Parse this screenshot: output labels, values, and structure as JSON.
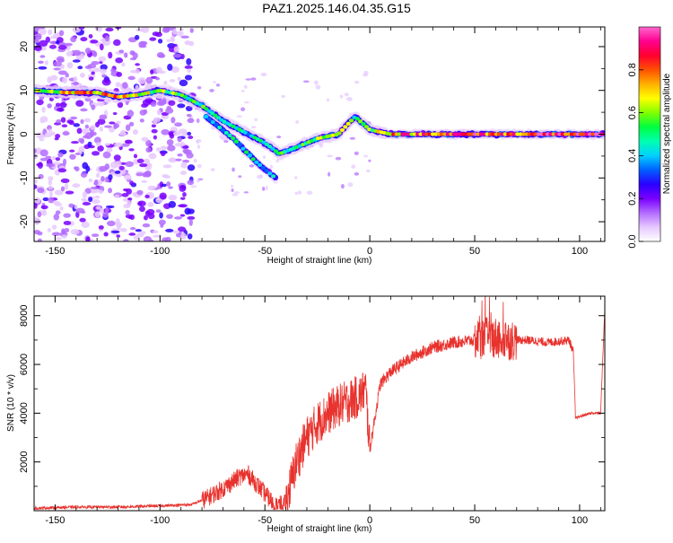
{
  "title": "PAZ1.2025.146.04.35.G15",
  "chart_data": [
    {
      "type": "heatmap",
      "xlabel": "Height of straight line (km)",
      "ylabel": "Frequency (Hz)",
      "xlim": [
        -160,
        112
      ],
      "ylim": [
        -24.5,
        24.5
      ],
      "xticks": [
        -150,
        -100,
        -50,
        0,
        50,
        100
      ],
      "yticks": [
        -20,
        -10,
        0,
        10,
        20
      ],
      "colorbar": {
        "label": "Normalized spectral amplitude",
        "range": [
          0.0,
          1.0
        ],
        "ticks": [
          0.0,
          0.2,
          0.4,
          0.6,
          0.8
        ],
        "colors": [
          "#ffffff",
          "#e6c8ff",
          "#b36bff",
          "#7a00ff",
          "#2a00ff",
          "#0060ff",
          "#00d0ff",
          "#00ffb0",
          "#00ff40",
          "#80ff00",
          "#ffff00",
          "#ffb000",
          "#ff5000",
          "#ff0030",
          "#ff0090",
          "#ff66cc"
        ]
      },
      "ridge": [
        {
          "x": -160,
          "y": 10,
          "a": 0.6
        },
        {
          "x": -145,
          "y": 9.5,
          "a": 0.7
        },
        {
          "x": -130,
          "y": 9.5,
          "a": 0.75
        },
        {
          "x": -120,
          "y": 8.5,
          "a": 0.7
        },
        {
          "x": -110,
          "y": 9,
          "a": 0.65
        },
        {
          "x": -100,
          "y": 10,
          "a": 0.6
        },
        {
          "x": -90,
          "y": 9,
          "a": 0.55
        },
        {
          "x": -80,
          "y": 6.5,
          "a": 0.5
        },
        {
          "x": -70,
          "y": 3,
          "a": 0.5
        },
        {
          "x": -60,
          "y": 0.5,
          "a": 0.45
        },
        {
          "x": -50,
          "y": -2,
          "a": 0.45
        },
        {
          "x": -43,
          "y": -4.5,
          "a": 0.5
        },
        {
          "x": -35,
          "y": -3,
          "a": 0.55
        },
        {
          "x": -25,
          "y": -1,
          "a": 0.6
        },
        {
          "x": -15,
          "y": 0,
          "a": 0.7
        },
        {
          "x": -7,
          "y": 4,
          "a": 0.55
        },
        {
          "x": 0,
          "y": 1,
          "a": 0.6
        },
        {
          "x": 10,
          "y": 0,
          "a": 0.8
        },
        {
          "x": 30,
          "y": 0,
          "a": 0.85
        },
        {
          "x": 50,
          "y": 0,
          "a": 0.85
        },
        {
          "x": 70,
          "y": 0,
          "a": 0.85
        },
        {
          "x": 90,
          "y": 0,
          "a": 0.9
        },
        {
          "x": 112,
          "y": 0,
          "a": 0.85
        }
      ],
      "secondary_branch": [
        {
          "x": -78,
          "y": 4,
          "a": 0.4
        },
        {
          "x": -65,
          "y": -1,
          "a": 0.45
        },
        {
          "x": -55,
          "y": -6,
          "a": 0.45
        },
        {
          "x": -45,
          "y": -10,
          "a": 0.4
        }
      ]
    },
    {
      "type": "line",
      "xlabel": "Height of straight line (km)",
      "ylabel": "SNR (10 * v/v)",
      "xlim": [
        -160,
        112
      ],
      "ylim": [
        0,
        8800
      ],
      "xticks": [
        -150,
        -100,
        -50,
        0,
        50,
        100
      ],
      "yticks": [
        2000,
        4000,
        6000,
        8000
      ],
      "color": "#e8322d",
      "series": [
        {
          "x": [
            -160,
            -140,
            -120,
            -100,
            -85,
            -78,
            -70,
            -62,
            -58,
            -50,
            -45,
            -40,
            -35,
            -30,
            -25,
            -20,
            -15,
            -10,
            -5,
            -2,
            0,
            5,
            10,
            20,
            30,
            40,
            50,
            55,
            60,
            65,
            75,
            85,
            95,
            97,
            98,
            105,
            110,
            112
          ],
          "y": [
            100,
            150,
            150,
            200,
            250,
            500,
            900,
            1400,
            1500,
            700,
            200,
            300,
            2000,
            3000,
            3600,
            4000,
            4300,
            4500,
            4700,
            5000,
            2500,
            5200,
            5700,
            6300,
            6700,
            6900,
            7000,
            7100,
            7100,
            7000,
            7000,
            6900,
            7000,
            6500,
            3800,
            4000,
            4000,
            8300
          ]
        }
      ]
    }
  ]
}
